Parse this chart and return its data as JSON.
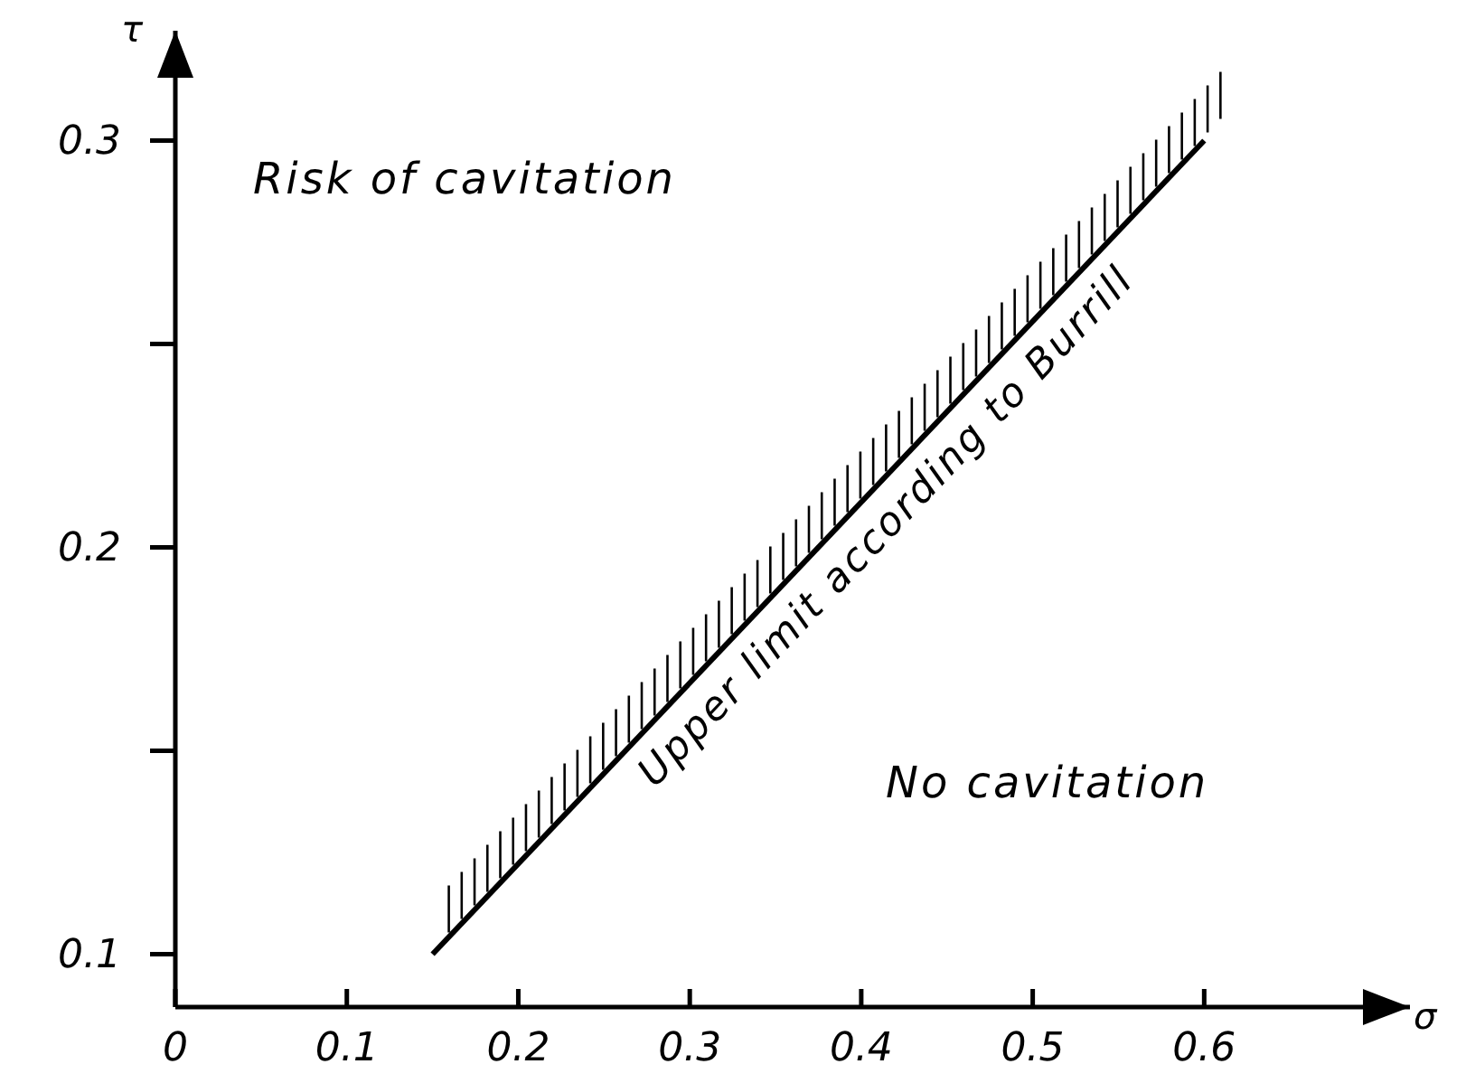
{
  "chart_data": {
    "type": "line",
    "xlabel": "σ",
    "ylabel": "τ",
    "x": [
      0.15,
      0.6
    ],
    "series": [
      {
        "color": "#000000",
        "values": [
          0.1,
          0.3
        ]
      }
    ],
    "xlim": [
      0,
      0.72
    ],
    "ylim": [
      0.087,
      0.327
    ],
    "xticks": [
      0,
      0.1,
      0.2,
      0.3,
      0.4,
      0.5,
      0.6
    ],
    "yticks": [
      0.1,
      {
        "value": 0.15,
        "label": null
      },
      0.2,
      {
        "value": 0.25,
        "label": null
      },
      0.3
    ],
    "grid": false,
    "marker": "none",
    "line_style": "solid",
    "annotations": [
      "Risk of cavitation",
      "No cavitation",
      {
        "text": "Upper limit according to Burrill",
        "x": 0.4,
        "y": 0.211
      }
    ]
  }
}
